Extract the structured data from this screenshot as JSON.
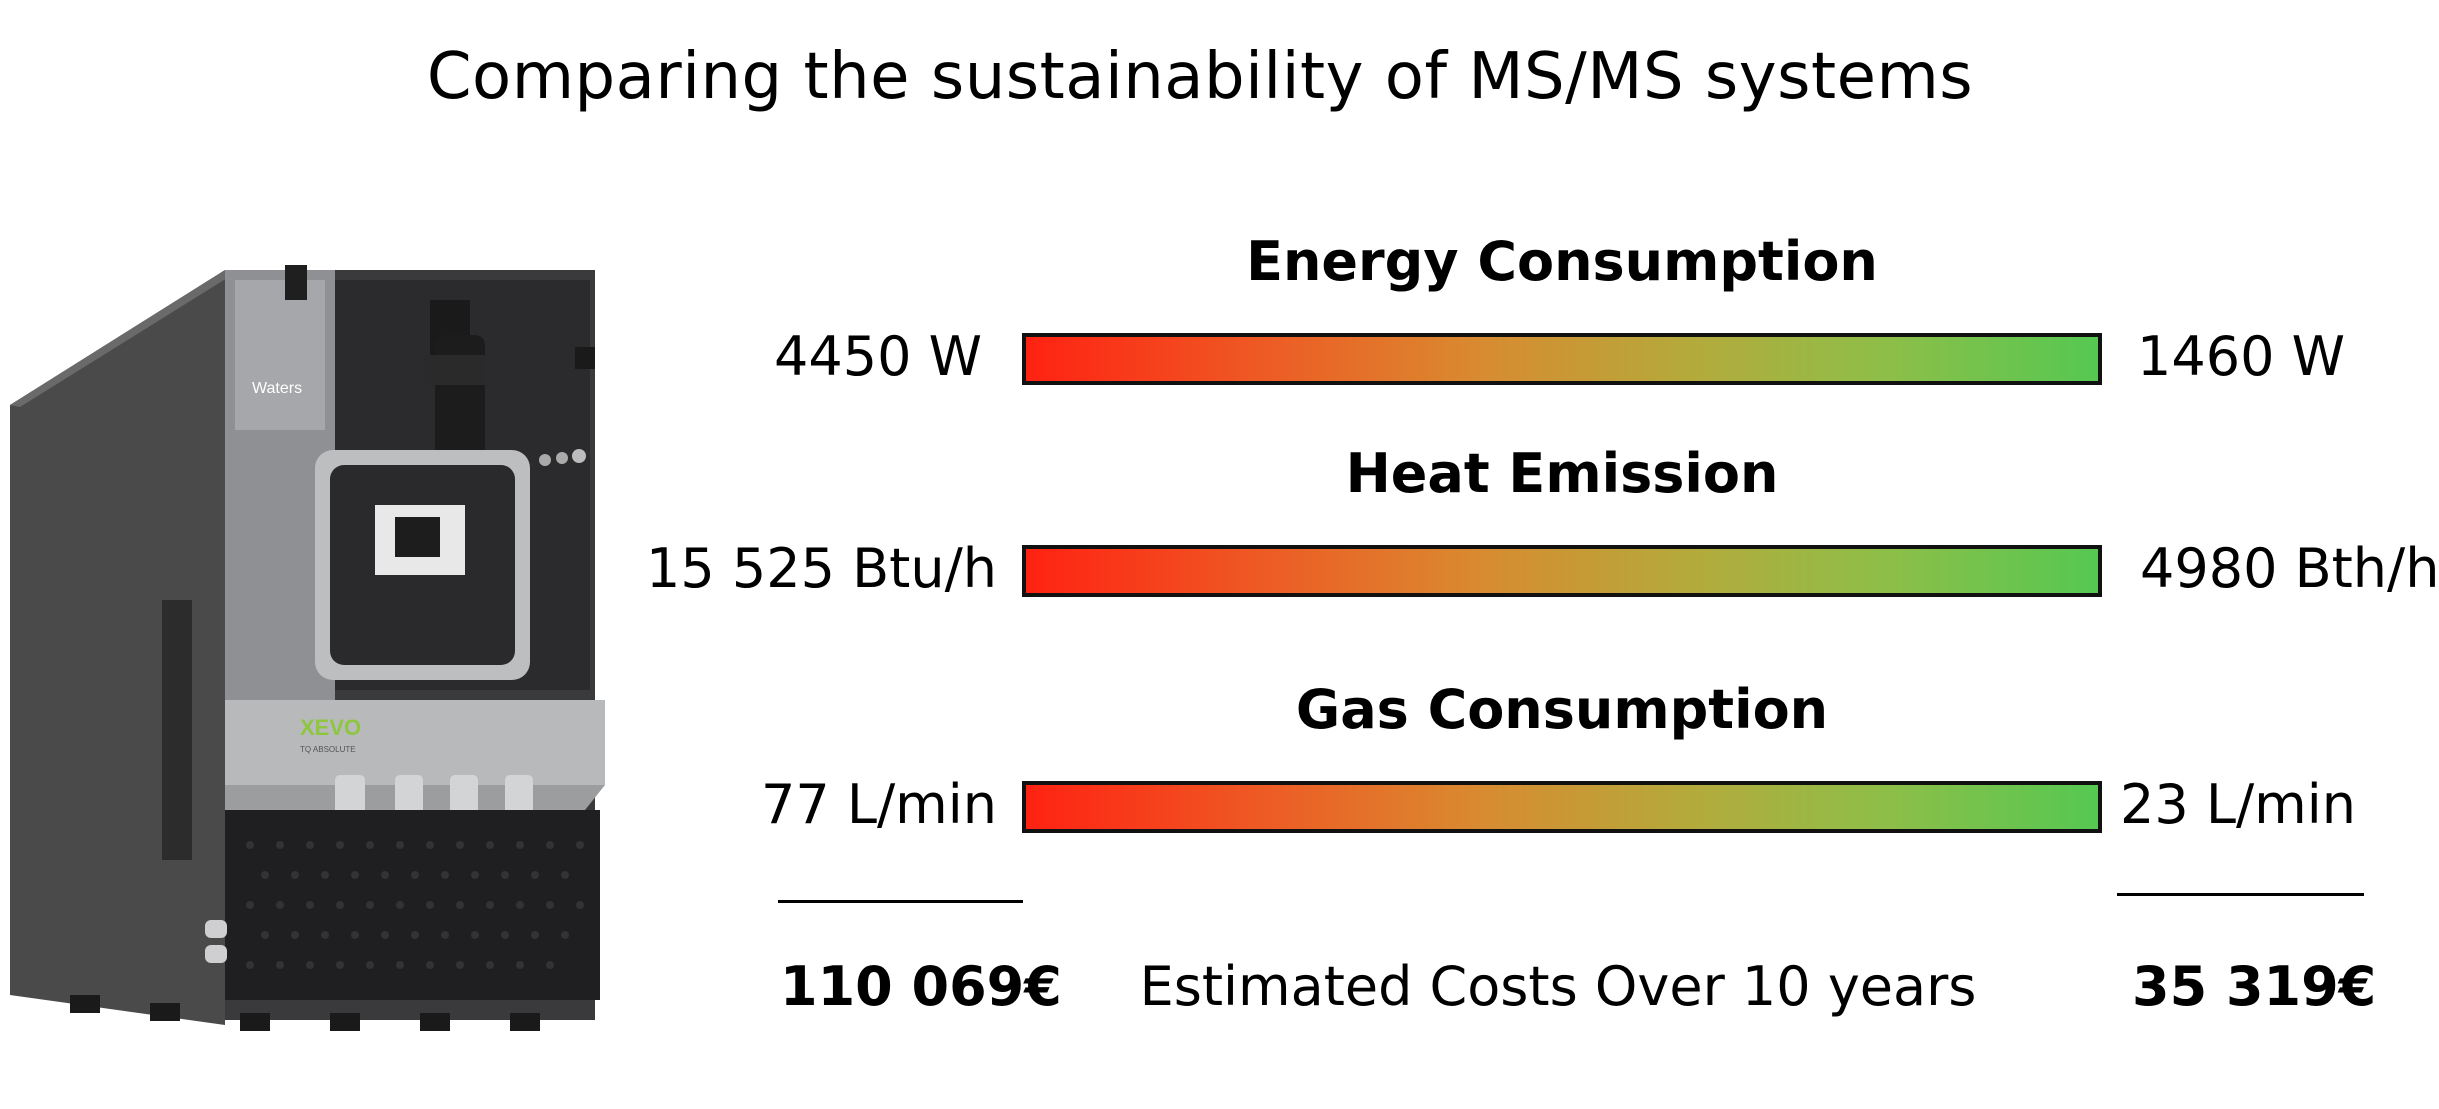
{
  "slide": {
    "title": "Comparing the sustainability of MS/MS systems"
  },
  "device": {
    "brand": "Waters",
    "model_label": "XEVO",
    "sub_label": "TQ ABSOLUTE"
  },
  "metrics": [
    {
      "title": "Energy Consumption",
      "left_value": "4450 W",
      "right_value": "1460 W"
    },
    {
      "title": "Heat Emission",
      "left_value": "15 525 Btu/h",
      "right_value": "4980 Bth/h"
    },
    {
      "title": "Gas Consumption",
      "left_value": "77 L/min",
      "right_value": "23 L/min"
    }
  ],
  "costs": {
    "left": "110 069€",
    "label": "Estimated Costs Over 10 years",
    "right": "35 319€"
  },
  "colors": {
    "bar_start": "#ff2212",
    "bar_end": "#55c852",
    "bar_border": "#111111"
  }
}
